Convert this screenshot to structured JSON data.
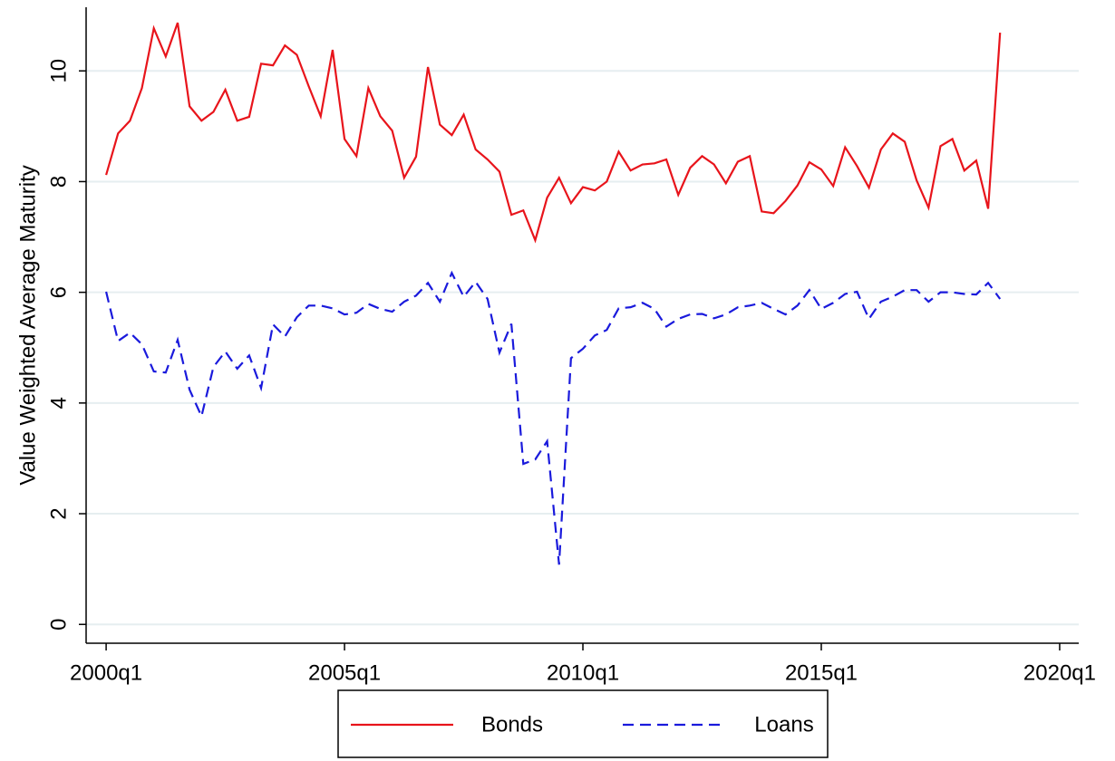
{
  "chart_data": {
    "type": "line",
    "ylabel": "Value Weighted Average Maturity",
    "x": [
      2000,
      2000.25,
      2000.5,
      2000.75,
      2001,
      2001.25,
      2001.5,
      2001.75,
      2002,
      2002.25,
      2002.5,
      2002.75,
      2003,
      2003.25,
      2003.5,
      2003.75,
      2004,
      2004.25,
      2004.5,
      2004.75,
      2005,
      2005.25,
      2005.5,
      2005.75,
      2006,
      2006.25,
      2006.5,
      2006.75,
      2007,
      2007.25,
      2007.5,
      2007.75,
      2008,
      2008.25,
      2008.5,
      2008.75,
      2009,
      2009.25,
      2009.5,
      2009.75,
      2010,
      2010.25,
      2010.5,
      2010.75,
      2011,
      2011.25,
      2011.5,
      2011.75,
      2012,
      2012.25,
      2012.5,
      2012.75,
      2013,
      2013.25,
      2013.5,
      2013.75,
      2014,
      2014.25,
      2014.5,
      2014.75,
      2015,
      2015.25,
      2015.5,
      2015.75,
      2016,
      2016.25,
      2016.5,
      2016.75,
      2017,
      2017.25,
      2017.5,
      2017.75,
      2018,
      2018.25,
      2018.5,
      2018.75
    ],
    "series": [
      {
        "name": "Bonds",
        "color": "#e8141b",
        "linestyle": "solid",
        "values": [
          8.12,
          8.87,
          9.1,
          9.69,
          10.77,
          10.26,
          10.87,
          9.36,
          9.1,
          9.26,
          9.66,
          9.1,
          9.17,
          10.13,
          10.1,
          10.46,
          10.29,
          9.72,
          9.18,
          10.38,
          8.77,
          8.46,
          9.69,
          9.18,
          8.92,
          8.07,
          8.45,
          10.07,
          9.03,
          8.84,
          9.21,
          8.58,
          8.4,
          8.18,
          7.4,
          7.48,
          6.94,
          7.71,
          8.07,
          7.61,
          7.9,
          7.84,
          8.0,
          8.54,
          8.2,
          8.31,
          8.33,
          8.4,
          7.76,
          8.25,
          8.46,
          8.31,
          7.97,
          8.36,
          8.46,
          7.46,
          7.43,
          7.65,
          7.93,
          8.35,
          8.22,
          7.92,
          8.62,
          8.28,
          7.89,
          8.58,
          8.87,
          8.72,
          8.02,
          7.53,
          8.64,
          8.77,
          8.2,
          8.38,
          7.51,
          10.69
        ]
      },
      {
        "name": "Loans",
        "color": "#1a1adc",
        "linestyle": "dashed",
        "values": [
          6.01,
          5.12,
          5.27,
          5.06,
          4.57,
          4.55,
          5.14,
          4.24,
          3.76,
          4.65,
          4.93,
          4.62,
          4.86,
          4.27,
          5.42,
          5.2,
          5.55,
          5.76,
          5.76,
          5.71,
          5.6,
          5.63,
          5.79,
          5.7,
          5.65,
          5.83,
          5.94,
          6.17,
          5.83,
          6.35,
          5.92,
          6.19,
          5.88,
          4.91,
          5.43,
          2.9,
          2.98,
          3.31,
          1.08,
          4.81,
          4.98,
          5.22,
          5.32,
          5.71,
          5.73,
          5.81,
          5.7,
          5.38,
          5.52,
          5.6,
          5.61,
          5.53,
          5.6,
          5.73,
          5.76,
          5.81,
          5.7,
          5.6,
          5.76,
          6.04,
          5.7,
          5.81,
          5.97,
          6.01,
          5.52,
          5.83,
          5.92,
          6.04,
          6.04,
          5.83,
          6.0,
          6.0,
          5.97,
          5.96,
          6.17,
          5.88
        ]
      }
    ],
    "xlim": [
      1999.58,
      2020.4
    ],
    "xticks": [
      {
        "value": 2000,
        "label": "2000q1"
      },
      {
        "value": 2005,
        "label": "2005q1"
      },
      {
        "value": 2010,
        "label": "2010q1"
      },
      {
        "value": 2015,
        "label": "2015q1"
      },
      {
        "value": 2020,
        "label": "2020q1"
      }
    ],
    "ylim": [
      -0.34,
      11.15
    ],
    "yticks": [
      0,
      2,
      4,
      6,
      8,
      10
    ],
    "grid": true,
    "legend": "bottom"
  }
}
